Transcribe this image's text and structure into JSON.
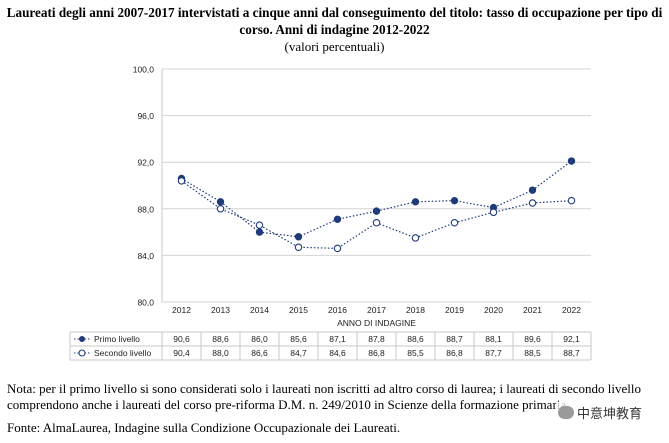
{
  "header": {
    "title": "Laureati degli anni 2007-2017 intervistati a cinque anni dal conseguimento del titolo: tasso di occupazione per tipo di corso. Anni di indagine 2012-2022",
    "subtitle": "(valori percentuali)"
  },
  "chart_data": {
    "type": "line",
    "x": [
      "2012",
      "2013",
      "2014",
      "2015",
      "2016",
      "2017",
      "2018",
      "2019",
      "2020",
      "2021",
      "2022"
    ],
    "xlabel": "ANNO DI INDAGINE",
    "ylabel": "",
    "ylim": [
      80,
      100
    ],
    "yticks": [
      "100,0",
      "96,0",
      "92,0",
      "88,0",
      "84,0",
      "80,0"
    ],
    "ytick_values": [
      100,
      96,
      92,
      88,
      84,
      80
    ],
    "grid": true,
    "legend": "table-below",
    "series": [
      {
        "name": "Primo livello",
        "marker": "filled-circle",
        "color": "#1f3b7a",
        "values": [
          90.6,
          88.6,
          86.0,
          85.6,
          87.1,
          87.8,
          88.6,
          88.7,
          88.1,
          89.6,
          92.1
        ],
        "labels": [
          "90,6",
          "88,6",
          "86,0",
          "85,6",
          "87,1",
          "87,8",
          "88,6",
          "88,7",
          "88,1",
          "89,6",
          "92,1"
        ]
      },
      {
        "name": "Secondo livello",
        "marker": "open-circle",
        "color": "#1f3b7a",
        "values": [
          90.4,
          88.0,
          86.6,
          84.7,
          84.6,
          86.8,
          85.5,
          86.8,
          87.7,
          88.5,
          88.7
        ],
        "labels": [
          "90,4",
          "88,0",
          "86,6",
          "84,7",
          "84,6",
          "86,8",
          "85,5",
          "86,8",
          "87,7",
          "88,5",
          "88,7"
        ]
      }
    ]
  },
  "footer": {
    "note": "Nota: per il primo livello si sono considerati solo i laureati non iscritti ad altro corso di laurea; i laureati di secondo livello comprendono anche i laureati del corso pre-riforma D.M. n. 249/2010 in Scienze della formazione primaria.",
    "source": "Fonte: AlmaLaurea, Indagine sulla Condizione Occupazionale dei Laureati.",
    "watermark": "中意坤教育"
  }
}
